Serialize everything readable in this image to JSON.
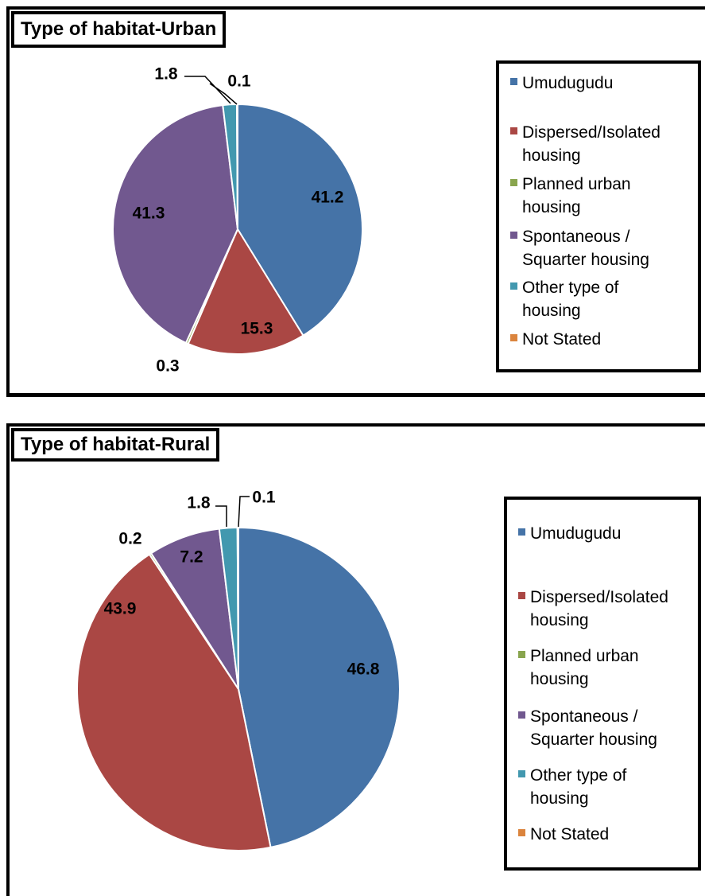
{
  "colors": {
    "series": [
      "#4573A7",
      "#AA4744",
      "#89A54E",
      "#71588F",
      "#4298AF",
      "#DB843D"
    ],
    "leader": "#000000"
  },
  "legend_labels": [
    "Umudugudu",
    "Dispersed/Isolated housing",
    "Planned urban housing",
    "Spontaneous / Squarter housing",
    "Other type of housing",
    "Not Stated"
  ],
  "chart_data": [
    {
      "type": "pie",
      "title": "Type of habitat-Urban",
      "categories": [
        "Umudugudu",
        "Dispersed/Isolated housing",
        "Planned urban housing",
        "Spontaneous / Squarter housing",
        "Other type of housing",
        "Not Stated"
      ],
      "values": [
        41.2,
        15.3,
        0.3,
        41.3,
        1.8,
        0.1
      ],
      "data_labels": [
        "41.2",
        "15.3",
        "0.3",
        "41.3",
        "1.8",
        "0.1"
      ],
      "legend_position": "right"
    },
    {
      "type": "pie",
      "title": "Type of habitat-Rural",
      "categories": [
        "Umudugudu",
        "Dispersed/Isolated housing",
        "Planned urban housing",
        "Spontaneous / Squarter housing",
        "Other type of housing",
        "Not Stated"
      ],
      "values": [
        46.8,
        43.9,
        0.2,
        7.2,
        1.8,
        0.1
      ],
      "data_labels": [
        "46.8",
        "43.9",
        "0.2",
        "7.2",
        "1.8",
        "0.1"
      ],
      "legend_position": "right"
    }
  ]
}
